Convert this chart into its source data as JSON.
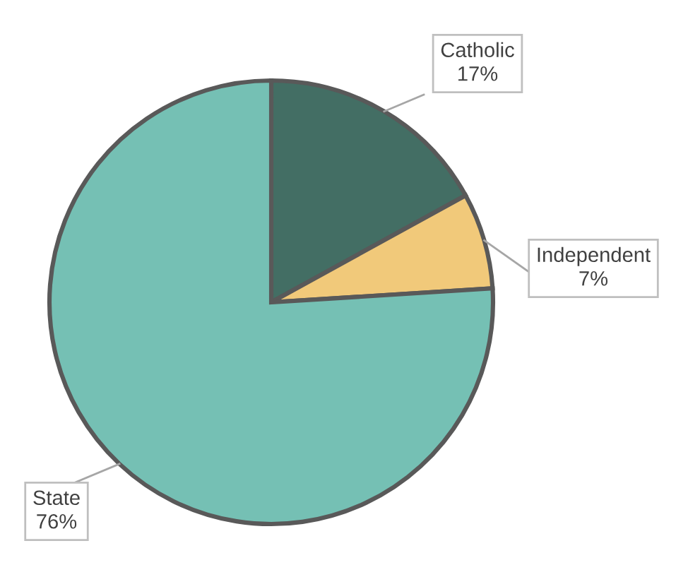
{
  "chart_data": {
    "type": "pie",
    "categories": [
      "Catholic",
      "Independent",
      "State"
    ],
    "values": [
      17,
      7,
      76
    ],
    "colors": [
      "#436e64",
      "#f1c97a",
      "#75c0b4"
    ],
    "value_labels": [
      "17%",
      "7%",
      "76%"
    ],
    "legend": false
  }
}
